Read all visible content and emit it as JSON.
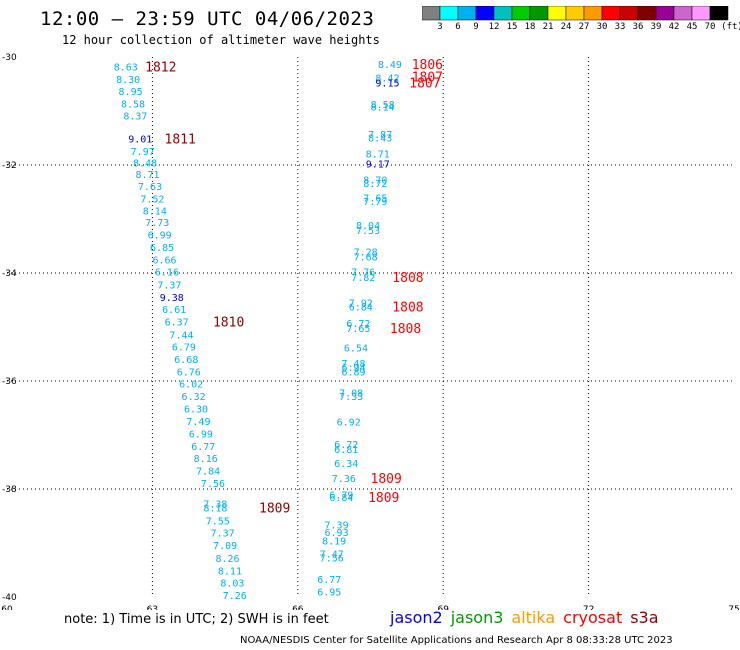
{
  "title": "12:00 — 23:59 UTC 04/06/2023",
  "subtitle": "12 hour collection of altimeter wave heights",
  "colorbar": {
    "colors": [
      "#808080",
      "#00ffff",
      "#00b0f0",
      "#0000ff",
      "#00c0c0",
      "#00cc00",
      "#009900",
      "#ffff00",
      "#ffcc00",
      "#ff9900",
      "#ff0000",
      "#cc0000",
      "#800000",
      "#990099",
      "#cc66cc",
      "#ff99ff",
      "#000000"
    ],
    "labels": [
      "3",
      "6",
      "9",
      "12",
      "15",
      "18",
      "21",
      "24",
      "27",
      "30",
      "33",
      "36",
      "39",
      "42",
      "45",
      "70",
      "(ft)"
    ]
  },
  "axes": {
    "x_ticks": [
      "60",
      "63",
      "66",
      "69",
      "72",
      "75"
    ],
    "y_ticks": [
      "-30",
      "-32",
      "-34",
      "-36",
      "-38",
      "-40"
    ]
  },
  "chart_data": {
    "type": "scatter",
    "xlim": [
      60,
      75
    ],
    "ylim": [
      -40,
      -30
    ],
    "x_ticks": [
      60,
      63,
      66,
      69,
      72,
      75
    ],
    "y_ticks": [
      -30,
      -32,
      -34,
      -36,
      -38,
      -40
    ],
    "grid": true,
    "points": [
      {
        "x": 62.45,
        "y": -30.18,
        "v": "8.63",
        "c": "#00b0f0"
      },
      {
        "x": 62.5,
        "y": -30.41,
        "v": "8.30",
        "c": "#00b0f0"
      },
      {
        "x": 62.55,
        "y": -30.63,
        "v": "8.95",
        "c": "#00b0f0"
      },
      {
        "x": 62.6,
        "y": -30.86,
        "v": "8.58",
        "c": "#00b0f0"
      },
      {
        "x": 62.65,
        "y": -31.08,
        "v": "8.37",
        "c": "#00b0f0"
      },
      {
        "x": 62.75,
        "y": -31.51,
        "v": "9.01",
        "c": "#0000cc"
      },
      {
        "x": 62.8,
        "y": -31.74,
        "v": "7.97",
        "c": "#00b0f0"
      },
      {
        "x": 62.85,
        "y": -31.95,
        "v": "8.48",
        "c": "#00b0f0"
      },
      {
        "x": 62.9,
        "y": -32.17,
        "v": "8.71",
        "c": "#00b0f0"
      },
      {
        "x": 62.95,
        "y": -32.39,
        "v": "7.63",
        "c": "#00b0f0"
      },
      {
        "x": 63.0,
        "y": -32.62,
        "v": "7.52",
        "c": "#00b0f0"
      },
      {
        "x": 63.05,
        "y": -32.84,
        "v": "8.14",
        "c": "#00b0f0"
      },
      {
        "x": 63.1,
        "y": -33.06,
        "v": "7.73",
        "c": "#00b0f0"
      },
      {
        "x": 63.15,
        "y": -33.29,
        "v": "6.99",
        "c": "#00b0f0"
      },
      {
        "x": 63.2,
        "y": -33.52,
        "v": "6.85",
        "c": "#00b0f0"
      },
      {
        "x": 63.25,
        "y": -33.75,
        "v": "6.66",
        "c": "#00b0f0"
      },
      {
        "x": 63.3,
        "y": -33.97,
        "v": "6.16",
        "c": "#00b0f0"
      },
      {
        "x": 63.35,
        "y": -34.21,
        "v": "7.37",
        "c": "#00b0f0"
      },
      {
        "x": 63.4,
        "y": -34.44,
        "v": "9.38",
        "c": "#0000cc"
      },
      {
        "x": 63.45,
        "y": -34.67,
        "v": "6.61",
        "c": "#00b0f0"
      },
      {
        "x": 63.5,
        "y": -34.9,
        "v": "6.37",
        "c": "#00b0f0"
      },
      {
        "x": 63.6,
        "y": -35.14,
        "v": "7.44",
        "c": "#00b0f0"
      },
      {
        "x": 63.65,
        "y": -35.36,
        "v": "6.79",
        "c": "#00b0f0"
      },
      {
        "x": 63.7,
        "y": -35.59,
        "v": "6.68",
        "c": "#00b0f0"
      },
      {
        "x": 63.75,
        "y": -35.82,
        "v": "6.76",
        "c": "#00b0f0"
      },
      {
        "x": 63.8,
        "y": -36.05,
        "v": "6.02",
        "c": "#00b0f0"
      },
      {
        "x": 63.85,
        "y": -36.28,
        "v": "6.32",
        "c": "#00b0f0"
      },
      {
        "x": 63.9,
        "y": -36.51,
        "v": "6.30",
        "c": "#00b0f0"
      },
      {
        "x": 63.95,
        "y": -36.74,
        "v": "7.49",
        "c": "#00b0f0"
      },
      {
        "x": 64.0,
        "y": -36.97,
        "v": "6.99",
        "c": "#00b0f0"
      },
      {
        "x": 64.05,
        "y": -37.2,
        "v": "6.77",
        "c": "#00b0f0"
      },
      {
        "x": 64.1,
        "y": -37.43,
        "v": "8.16",
        "c": "#00b0f0"
      },
      {
        "x": 64.15,
        "y": -37.66,
        "v": "7.84",
        "c": "#00b0f0"
      },
      {
        "x": 64.25,
        "y": -37.89,
        "v": "7.56",
        "c": "#00b0f0"
      },
      {
        "x": 64.3,
        "y": -38.27,
        "v": "7.38",
        "c": "#00b0f0"
      },
      {
        "x": 64.3,
        "y": -38.34,
        "v": "8.18",
        "c": "#00b0f0"
      },
      {
        "x": 64.35,
        "y": -38.58,
        "v": "7.55",
        "c": "#00b0f0"
      },
      {
        "x": 64.45,
        "y": -38.81,
        "v": "7.37",
        "c": "#00b0f0"
      },
      {
        "x": 64.5,
        "y": -39.04,
        "v": "7.09",
        "c": "#00b0f0"
      },
      {
        "x": 64.55,
        "y": -39.28,
        "v": "8.26",
        "c": "#00b0f0"
      },
      {
        "x": 64.6,
        "y": -39.51,
        "v": "8.11",
        "c": "#00b0f0"
      },
      {
        "x": 64.65,
        "y": -39.73,
        "v": "8.03",
        "c": "#00b0f0"
      },
      {
        "x": 64.7,
        "y": -39.96,
        "v": "7.26",
        "c": "#00b0f0"
      },
      {
        "x": 67.9,
        "y": -30.13,
        "v": "8.49",
        "c": "#00b0f0"
      },
      {
        "x": 67.85,
        "y": -30.38,
        "v": "8.42",
        "c": "#00b0f0"
      },
      {
        "x": 67.85,
        "y": -30.47,
        "v": "9.15",
        "c": "#0000cc"
      },
      {
        "x": 67.75,
        "y": -30.87,
        "v": "8.58",
        "c": "#00b0f0"
      },
      {
        "x": 67.75,
        "y": -30.92,
        "v": "8.14",
        "c": "#00b0f0"
      },
      {
        "x": 67.7,
        "y": -31.43,
        "v": "7.87",
        "c": "#00b0f0"
      },
      {
        "x": 67.7,
        "y": -31.49,
        "v": "8.43",
        "c": "#00b0f0"
      },
      {
        "x": 67.65,
        "y": -31.79,
        "v": "8.71",
        "c": "#00b0f0"
      },
      {
        "x": 67.65,
        "y": -31.97,
        "v": "9.17",
        "c": "#0000cc"
      },
      {
        "x": 67.6,
        "y": -32.27,
        "v": "8.70",
        "c": "#00b0f0"
      },
      {
        "x": 67.6,
        "y": -32.33,
        "v": "8.72",
        "c": "#00b0f0"
      },
      {
        "x": 67.6,
        "y": -32.6,
        "v": "7.65",
        "c": "#00b0f0"
      },
      {
        "x": 67.6,
        "y": -32.67,
        "v": "7.79",
        "c": "#00b0f0"
      },
      {
        "x": 67.45,
        "y": -33.11,
        "v": "8.04",
        "c": "#00b0f0"
      },
      {
        "x": 67.45,
        "y": -33.2,
        "v": "7.53",
        "c": "#00b0f0"
      },
      {
        "x": 67.4,
        "y": -33.6,
        "v": "7.28",
        "c": "#00b0f0"
      },
      {
        "x": 67.4,
        "y": -33.69,
        "v": "7.68",
        "c": "#00b0f0"
      },
      {
        "x": 67.35,
        "y": -33.97,
        "v": "7.76",
        "c": "#00b0f0"
      },
      {
        "x": 67.35,
        "y": -34.07,
        "v": "7.82",
        "c": "#00b0f0"
      },
      {
        "x": 67.3,
        "y": -34.55,
        "v": "7.92",
        "c": "#00b0f0"
      },
      {
        "x": 67.3,
        "y": -34.62,
        "v": "6.84",
        "c": "#00b0f0"
      },
      {
        "x": 67.25,
        "y": -34.93,
        "v": "6.72",
        "c": "#00b0f0"
      },
      {
        "x": 67.25,
        "y": -35.02,
        "v": "7.65",
        "c": "#00b0f0"
      },
      {
        "x": 67.2,
        "y": -35.38,
        "v": "6.54",
        "c": "#00b0f0"
      },
      {
        "x": 67.15,
        "y": -35.67,
        "v": "7.48",
        "c": "#00b0f0"
      },
      {
        "x": 67.15,
        "y": -35.74,
        "v": "6.94",
        "c": "#00b0f0"
      },
      {
        "x": 67.15,
        "y": -35.82,
        "v": "6.89",
        "c": "#00b0f0"
      },
      {
        "x": 67.1,
        "y": -36.21,
        "v": "7.08",
        "c": "#00b0f0"
      },
      {
        "x": 67.1,
        "y": -36.28,
        "v": "7.33",
        "c": "#00b0f0"
      },
      {
        "x": 67.05,
        "y": -36.75,
        "v": "6.92",
        "c": "#00b0f0"
      },
      {
        "x": 67.0,
        "y": -37.17,
        "v": "6.72",
        "c": "#00b0f0"
      },
      {
        "x": 67.0,
        "y": -37.26,
        "v": "6.81",
        "c": "#00b0f0"
      },
      {
        "x": 67.0,
        "y": -37.52,
        "v": "6.34",
        "c": "#00b0f0"
      },
      {
        "x": 66.95,
        "y": -37.8,
        "v": "7.36",
        "c": "#00b0f0"
      },
      {
        "x": 66.9,
        "y": -38.1,
        "v": "6.79",
        "c": "#00b0f0"
      },
      {
        "x": 66.9,
        "y": -38.15,
        "v": "6.84",
        "c": "#00b0f0"
      },
      {
        "x": 66.8,
        "y": -38.66,
        "v": "7.39",
        "c": "#00b0f0"
      },
      {
        "x": 66.8,
        "y": -38.8,
        "v": "6.93",
        "c": "#00b0f0"
      },
      {
        "x": 66.75,
        "y": -38.95,
        "v": "8.19",
        "c": "#00b0f0"
      },
      {
        "x": 66.7,
        "y": -39.19,
        "v": "7.47",
        "c": "#00b0f0"
      },
      {
        "x": 66.7,
        "y": -39.27,
        "v": "7.56",
        "c": "#00b0f0"
      },
      {
        "x": 66.65,
        "y": -39.67,
        "v": "6.77",
        "c": "#00b0f0"
      },
      {
        "x": 66.65,
        "y": -39.9,
        "v": "6.95",
        "c": "#00b0f0"
      }
    ],
    "pass_labels": [
      {
        "x": 62.85,
        "y": -30.18,
        "t": "1812",
        "c": "#8b0000"
      },
      {
        "x": 63.25,
        "y": -31.51,
        "t": "1811",
        "c": "#8b0000"
      },
      {
        "x": 64.25,
        "y": -34.9,
        "t": "1810",
        "c": "#8b0000"
      },
      {
        "x": 65.2,
        "y": -38.34,
        "t": "1809",
        "c": "#8b0000"
      },
      {
        "x": 68.35,
        "y": -30.13,
        "t": "1806",
        "c": "#ff0000"
      },
      {
        "x": 68.35,
        "y": -30.36,
        "t": "1807",
        "c": "#ff0000"
      },
      {
        "x": 68.3,
        "y": -30.47,
        "t": "1807",
        "c": "#ff0000"
      },
      {
        "x": 67.95,
        "y": -34.07,
        "t": "1808",
        "c": "#ff0000"
      },
      {
        "x": 67.95,
        "y": -34.62,
        "t": "1808",
        "c": "#ff0000"
      },
      {
        "x": 67.9,
        "y": -35.02,
        "t": "1808",
        "c": "#ff0000"
      },
      {
        "x": 67.5,
        "y": -37.8,
        "t": "1809",
        "c": "#ff0000"
      },
      {
        "x": 67.45,
        "y": -38.15,
        "t": "1809",
        "c": "#ff0000"
      }
    ]
  },
  "note": "note: 1) Time is in UTC; 2) SWH is in feet",
  "legend": [
    {
      "name": "jason2",
      "color": "#0000ff"
    },
    {
      "name": "jason3",
      "color": "#009900"
    },
    {
      "name": "altika",
      "color": "#ff9900"
    },
    {
      "name": "cryosat",
      "color": "#ff0000"
    },
    {
      "name": "s3a",
      "color": "#8b0000"
    }
  ],
  "footer": "NOAA/NESDIS Center for Satellite Applications and Research   Apr  8 08:33:28 UTC 2023"
}
